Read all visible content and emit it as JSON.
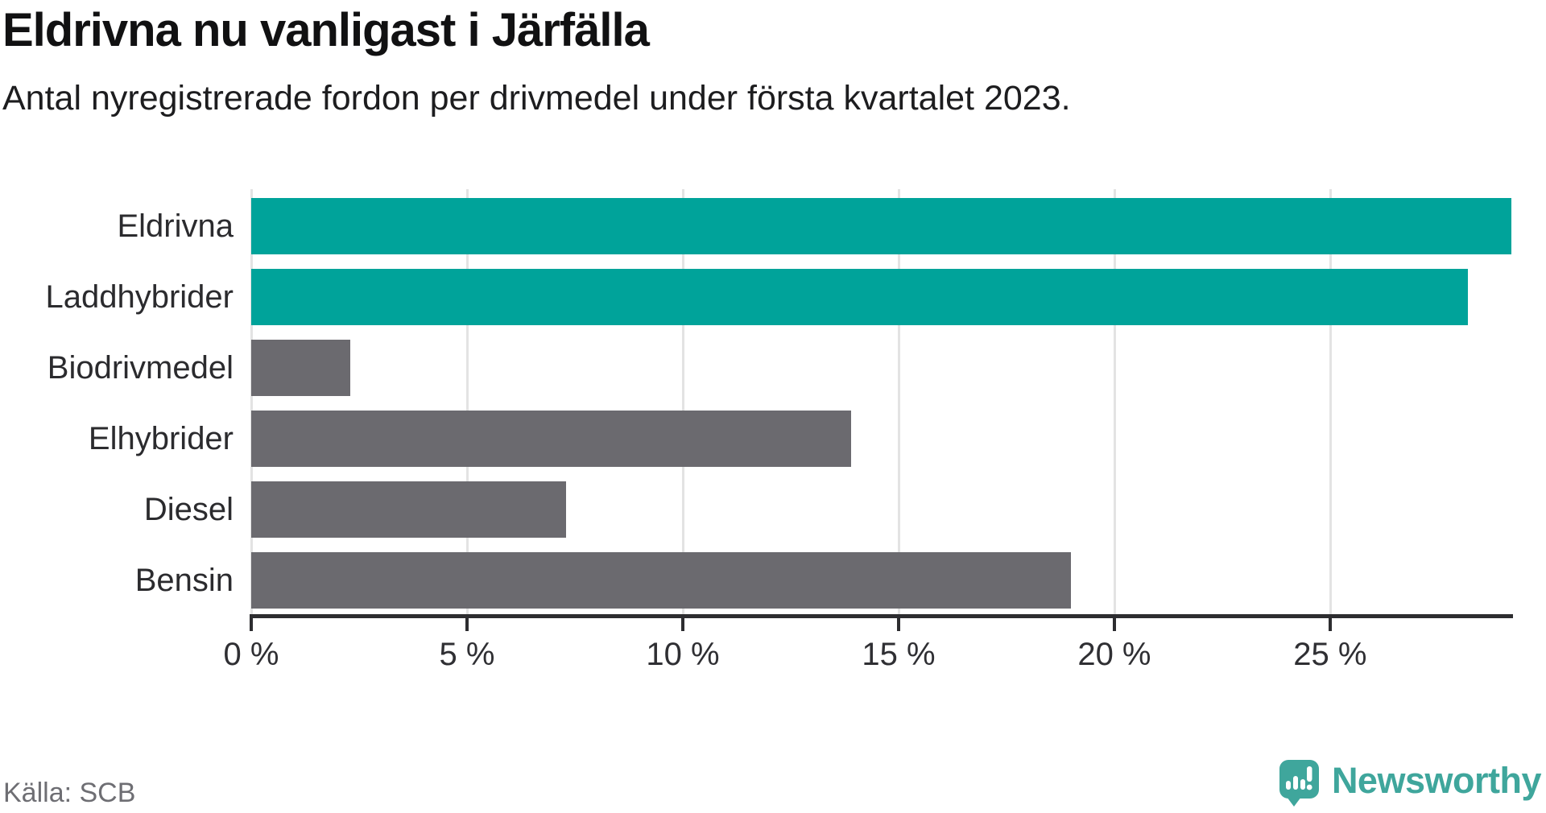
{
  "header": {
    "title": "Eldrivna nu vanligast i Järfälla",
    "subtitle": "Antal nyregistrerade fordon per drivmedel under första kvartalet 2023."
  },
  "chart_data": {
    "type": "bar",
    "orientation": "horizontal",
    "title": "Eldrivna nu vanligast i Järfälla",
    "subtitle": "Antal nyregistrerade fordon per drivmedel under första kvartalet 2023.",
    "categories": [
      "Eldrivna",
      "Laddhybrider",
      "Biodrivmedel",
      "Elhybrider",
      "Diesel",
      "Bensin"
    ],
    "values": [
      29.2,
      28.2,
      2.3,
      13.9,
      7.3,
      19.0
    ],
    "unit": "%",
    "xlim": [
      0,
      29.2
    ],
    "grid": "vertical",
    "legend": "none",
    "bar_colors": [
      "#00a39a",
      "#00a39a",
      "#6b6a6f",
      "#6b6a6f",
      "#6b6a6f",
      "#6b6a6f"
    ],
    "ticks": [
      {
        "value": 0,
        "label": "0 %"
      },
      {
        "value": 5,
        "label": "5 %"
      },
      {
        "value": 10,
        "label": "10 %"
      },
      {
        "value": 15,
        "label": "15 %"
      },
      {
        "value": 20,
        "label": "20 %"
      },
      {
        "value": 25,
        "label": "25 %"
      }
    ]
  },
  "colors": {
    "accent_teal": "#00a39a",
    "bar_gray": "#6b6a6f",
    "brand_teal": "#3fa69c",
    "axis": "#2d2d30",
    "gridline": "#e3e3e3"
  },
  "footer": {
    "source": "Källa: SCB",
    "brand": "Newsworthy"
  }
}
